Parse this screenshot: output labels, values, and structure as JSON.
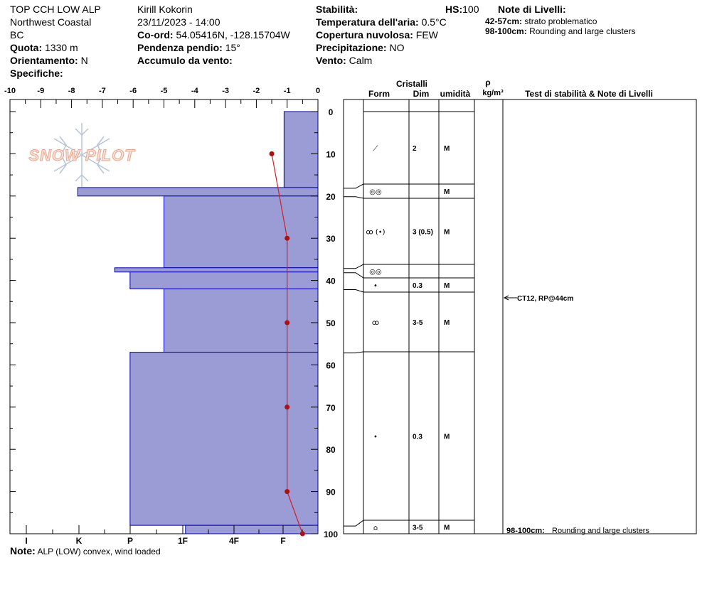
{
  "header": {
    "site": "TOP CCH LOW ALP",
    "region": "Northwest Coastal",
    "province": "BC",
    "elevation_label": "Quota:",
    "elevation": "1330 m",
    "aspect_label": "Orientamento:",
    "aspect": "N",
    "specifics_label": "Specifiche:",
    "observer": "Kirill Kokorin",
    "datetime": "23/11/2023 - 14:00",
    "coords_label": "Co-ord:",
    "coords": "54.05416N, -128.15704W",
    "slope_label": "Pendenza pendio:",
    "slope": "15°",
    "wind_loading_label": "Accumulo da vento:",
    "stability_label": "Stabilità:",
    "hs_label": "HS:",
    "hs": "100",
    "air_temp_label": "Temperatura dell'aria:",
    "air_temp": "0.5°C",
    "cloud_label": "Copertura nuvolosa:",
    "cloud": "FEW",
    "precip_label": "Precipitazione:",
    "precip": "NO",
    "wind_label": "Vento:",
    "wind": "Calm",
    "layer_notes_title": "Note di Livelli:",
    "layer_notes": [
      {
        "range": "42-57cm:",
        "text": "strato problematico"
      },
      {
        "range": "98-100cm:",
        "text": "Rounding and large clusters"
      }
    ],
    "note_label": "Note:",
    "note": "ALP (LOW) convex, wind loaded"
  },
  "logo": {
    "text": "SNOW PILOT"
  },
  "colors": {
    "layer_fill": "#9b9bd6",
    "layer_stroke": "#0000aa",
    "temp_line": "#cc2222",
    "temp_point": "#aa1111"
  },
  "chart_data": {
    "type": "snow_profile",
    "temperature_axis": {
      "ticks": [
        "-10",
        "-9",
        "-8",
        "-7",
        "-6",
        "-5",
        "-4",
        "-3",
        "-2",
        "-1",
        "0"
      ],
      "range": [
        -10,
        0
      ]
    },
    "hardness_axis": {
      "ticks": [
        "I",
        "K",
        "P",
        "1F",
        "4F",
        "F"
      ]
    },
    "depth_axis": {
      "ticks": [
        "0",
        "10",
        "20",
        "30",
        "40",
        "50",
        "60",
        "70",
        "80",
        "90",
        "100"
      ],
      "range": [
        0,
        100
      ],
      "reversed": true
    },
    "layers": [
      {
        "top": 0,
        "bottom": 18,
        "temp_axis_value": -1.1
      },
      {
        "top": 18,
        "bottom": 20,
        "temp_axis_value": -7.8
      },
      {
        "top": 20,
        "bottom": 37,
        "temp_axis_value": -5.0
      },
      {
        "top": 37,
        "bottom": 38,
        "temp_axis_value": -6.6
      },
      {
        "top": 38,
        "bottom": 42,
        "temp_axis_value": -6.1
      },
      {
        "top": 42,
        "bottom": 57,
        "temp_axis_value": -5.0
      },
      {
        "top": 57,
        "bottom": 98,
        "temp_axis_value": -6.1
      },
      {
        "top": 98,
        "bottom": 100,
        "temp_axis_value": -4.3
      }
    ],
    "temperature_profile": [
      {
        "depth": 10,
        "temp": -1.5
      },
      {
        "depth": 30,
        "temp": -1.0
      },
      {
        "depth": 50,
        "temp": -1.0
      },
      {
        "depth": 70,
        "temp": -1.0
      },
      {
        "depth": 90,
        "temp": -1.0
      },
      {
        "depth": 100,
        "temp": -0.5
      }
    ],
    "table": {
      "crystals_header": "Cristalli",
      "form_header": "Form",
      "size_header": "Dim",
      "moisture_header": "umidità",
      "density_header_symbol": "ρ",
      "density_header_unit": "kg/m³",
      "tests_header": "Test di stabilità & Note di Livelli",
      "rows": [
        {
          "top": 0,
          "bottom": 18,
          "form": "⟋",
          "size": "2",
          "moisture": "M"
        },
        {
          "top": 18,
          "bottom": 20,
          "form": "◎◎",
          "size": "",
          "moisture": "M"
        },
        {
          "top": 20,
          "bottom": 37,
          "form": "ꝏ (•)",
          "size": "3 (0.5)",
          "moisture": "M"
        },
        {
          "top": 37,
          "bottom": 38,
          "form": "◎◎",
          "size": "",
          "moisture": ""
        },
        {
          "top": 38,
          "bottom": 42,
          "form": "•",
          "size": "0.3",
          "moisture": "M"
        },
        {
          "top": 42,
          "bottom": 57,
          "form": "ꝏ",
          "size": "3-5",
          "moisture": "M"
        },
        {
          "top": 57,
          "bottom": 98,
          "form": "•",
          "size": "0.3",
          "moisture": "M"
        },
        {
          "top": 98,
          "bottom": 100,
          "form": "⌂",
          "size": "3-5",
          "moisture": "M"
        }
      ],
      "stability_tests": [
        {
          "depth": 44,
          "text": "CT12, RP@44cm"
        }
      ],
      "bottom_note": {
        "range": "98-100cm:",
        "text": "Rounding and large clusters"
      }
    }
  }
}
